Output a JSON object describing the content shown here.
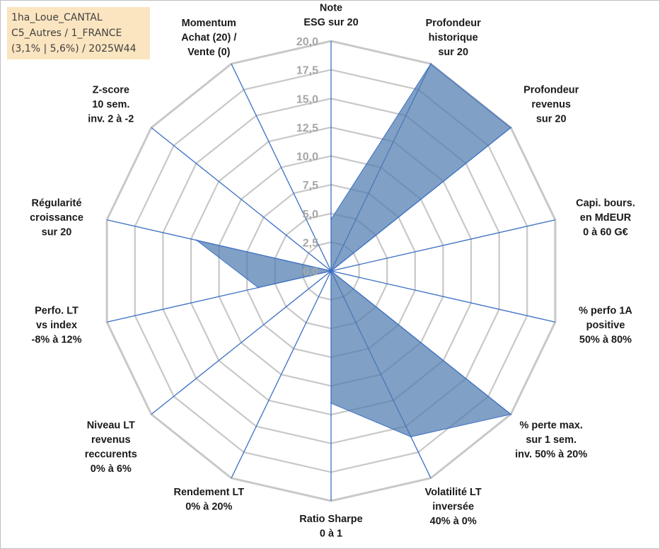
{
  "info": {
    "line1": "1ha_Loue_CANTAL",
    "line2": "C5_Autres / 1_FRANCE",
    "line3": "(3,1% | 5,6%) / 2025W44"
  },
  "colors": {
    "fill": "#4f7bb0",
    "fill_opacity": 0.72,
    "axis": "#3a6fc4",
    "grid": "#c8c8c8"
  },
  "chart_data": {
    "type": "radar",
    "rmin": 0,
    "rmax": 20,
    "ticks": [
      "0,0",
      "2,5",
      "5,0",
      "7,5",
      "10,0",
      "12,5",
      "15,0",
      "17,5",
      "20,0"
    ],
    "axes": [
      {
        "label": [
          "Note",
          "ESG sur 20"
        ],
        "value": 4.5
      },
      {
        "label": [
          "Profondeur",
          "historique",
          "sur 20"
        ],
        "value": 20
      },
      {
        "label": [
          "Profondeur",
          "revenus",
          "sur 20"
        ],
        "value": 20
      },
      {
        "label": [
          "Capi. bours.",
          "en MdEUR",
          "0 à 60 G€"
        ],
        "value": 0
      },
      {
        "label": [
          "% perfo 1A",
          "positive",
          "50% à 80%"
        ],
        "value": 0
      },
      {
        "label": [
          "% perte max.",
          "sur 1 sem.",
          "inv. 50% à 20%"
        ],
        "value": 20
      },
      {
        "label": [
          "Volatilité LT",
          "inversée",
          "40% à 0%"
        ],
        "value": 16
      },
      {
        "label": [
          "Ratio Sharpe",
          "0 à 1"
        ],
        "value": 11.5
      },
      {
        "label": [
          "Rendement LT",
          "0% à 20%"
        ],
        "value": 0
      },
      {
        "label": [
          "Niveau LT",
          "revenus",
          "reccurents",
          "0% à 6%"
        ],
        "value": 0
      },
      {
        "label": [
          "Perfo. LT",
          "vs index",
          "-8% à 12%"
        ],
        "value": 6.5
      },
      {
        "label": [
          "Régularité",
          "croissance",
          "sur 20"
        ],
        "value": 12
      },
      {
        "label": [
          "Z-score",
          "10 sem.",
          "inv. 2 à -2"
        ],
        "value": 0
      },
      {
        "label": [
          "Momentum",
          "Achat (20) /",
          "Vente (0)"
        ],
        "value": 0
      }
    ]
  }
}
